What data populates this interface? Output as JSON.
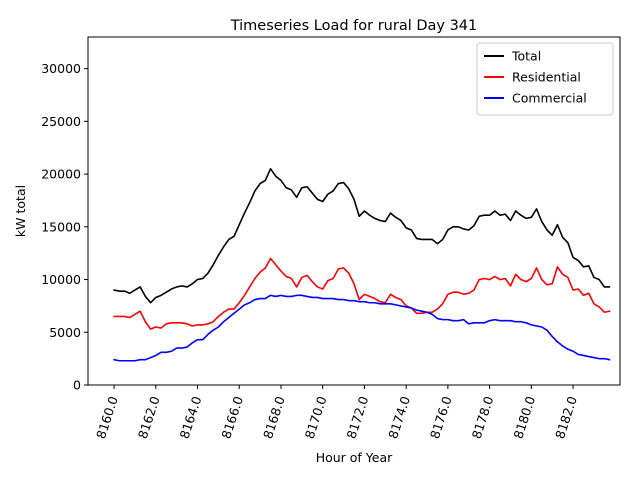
{
  "chart_data": {
    "type": "line",
    "title": "Timeseries Load for rural   Day 341",
    "xlabel": "Hour of Year",
    "ylabel": "kW total",
    "xlim": [
      8158.75,
      8184.25
    ],
    "ylim": [
      0,
      33000
    ],
    "xticks": [
      8160,
      8162,
      8164,
      8166,
      8168,
      8170,
      8172,
      8174,
      8176,
      8178,
      8180,
      8182
    ],
    "xtick_labels": [
      "8160.0",
      "8162.0",
      "8164.0",
      "8166.0",
      "8168.0",
      "8170.0",
      "8172.0",
      "8174.0",
      "8176.0",
      "8178.0",
      "8180.0",
      "8182.0"
    ],
    "yticks": [
      0,
      5000,
      10000,
      15000,
      20000,
      25000,
      30000
    ],
    "ytick_labels": [
      "0",
      "5000",
      "10000",
      "15000",
      "20000",
      "25000",
      "30000"
    ],
    "legend_position": "top-right",
    "x": [
      8160,
      8160.25,
      8160.5,
      8160.75,
      8161,
      8161.25,
      8161.5,
      8161.75,
      8162,
      8162.25,
      8162.5,
      8162.75,
      8163,
      8163.25,
      8163.5,
      8163.75,
      8164,
      8164.25,
      8164.5,
      8164.75,
      8165,
      8165.25,
      8165.5,
      8165.75,
      8166,
      8166.25,
      8166.5,
      8166.75,
      8167,
      8167.25,
      8167.5,
      8167.75,
      8168,
      8168.25,
      8168.5,
      8168.75,
      8169,
      8169.25,
      8169.5,
      8169.75,
      8170,
      8170.25,
      8170.5,
      8170.75,
      8171,
      8171.25,
      8171.5,
      8171.75,
      8172,
      8172.25,
      8172.5,
      8172.75,
      8173,
      8173.25,
      8173.5,
      8173.75,
      8174,
      8174.25,
      8174.5,
      8174.75,
      8175,
      8175.25,
      8175.5,
      8175.75,
      8176,
      8176.25,
      8176.5,
      8176.75,
      8177,
      8177.25,
      8177.5,
      8177.75,
      8178,
      8178.25,
      8178.5,
      8178.75,
      8179,
      8179.25,
      8179.5,
      8179.75,
      8180,
      8180.25,
      8180.5,
      8180.75,
      8181,
      8181.25,
      8181.5,
      8181.75,
      8182,
      8182.25,
      8182.5,
      8182.75,
      8183,
      8183.25,
      8183.5,
      8183.75
    ],
    "series": [
      {
        "name": "Total",
        "color": "#000000",
        "values": [
          9000,
          8900,
          8900,
          8700,
          9000,
          9300,
          8400,
          7800,
          8300,
          8500,
          8800,
          9100,
          9300,
          9400,
          9300,
          9600,
          10000,
          10100,
          10600,
          11400,
          12300,
          13100,
          13800,
          14100,
          15200,
          16300,
          17300,
          18400,
          19100,
          19400,
          20500,
          19800,
          19400,
          18700,
          18500,
          17800,
          18700,
          18800,
          18200,
          17600,
          17400,
          18100,
          18400,
          19100,
          19200,
          18600,
          17600,
          16000,
          16500,
          16100,
          15800,
          15600,
          15500,
          16300,
          15900,
          15600,
          14900,
          14700,
          13900,
          13800,
          13800,
          13800,
          13400,
          13800,
          14700,
          15000,
          15000,
          14800,
          14700,
          15100,
          16000,
          16100,
          16100,
          16500,
          16100,
          16200,
          15600,
          16500,
          16100,
          15800,
          15900,
          16700,
          15500,
          14700,
          14200,
          15200,
          14000,
          13500,
          12100,
          11800,
          11200,
          11300,
          10200,
          10000,
          9300,
          9300
        ]
      },
      {
        "name": "Residential",
        "color": "#ff0000",
        "values": [
          6500,
          6500,
          6500,
          6400,
          6700,
          7000,
          6000,
          5300,
          5500,
          5400,
          5800,
          5900,
          5900,
          5900,
          5800,
          5600,
          5700,
          5700,
          5800,
          6000,
          6500,
          6900,
          7200,
          7200,
          7800,
          8500,
          9300,
          10100,
          10700,
          11100,
          12000,
          11400,
          10800,
          10300,
          10100,
          9300,
          10200,
          10400,
          9800,
          9300,
          9100,
          9900,
          10100,
          11000,
          11100,
          10600,
          9600,
          8100,
          8600,
          8400,
          8200,
          7900,
          7800,
          8600,
          8300,
          8100,
          7500,
          7300,
          6800,
          6800,
          6900,
          6900,
          7200,
          7700,
          8600,
          8800,
          8800,
          8600,
          8700,
          9000,
          10000,
          10100,
          10000,
          10300,
          10000,
          10100,
          9400,
          10500,
          10000,
          9800,
          10100,
          11100,
          10000,
          9500,
          9600,
          11200,
          10500,
          10200,
          9000,
          9100,
          8500,
          8700,
          7700,
          7400,
          6900,
          7000
        ]
      },
      {
        "name": "Commercial",
        "color": "#0000ff",
        "values": [
          2400,
          2300,
          2300,
          2300,
          2300,
          2400,
          2400,
          2600,
          2800,
          3100,
          3100,
          3200,
          3500,
          3500,
          3600,
          4000,
          4300,
          4300,
          4800,
          5200,
          5500,
          6000,
          6400,
          6800,
          7200,
          7600,
          7800,
          8100,
          8200,
          8200,
          8500,
          8400,
          8500,
          8400,
          8400,
          8500,
          8500,
          8400,
          8300,
          8300,
          8200,
          8200,
          8200,
          8100,
          8100,
          8000,
          8000,
          7900,
          7900,
          7800,
          7800,
          7700,
          7700,
          7700,
          7600,
          7500,
          7400,
          7300,
          7100,
          7000,
          6900,
          6700,
          6300,
          6200,
          6200,
          6100,
          6100,
          6200,
          5800,
          5900,
          5900,
          5900,
          6100,
          6200,
          6100,
          6100,
          6100,
          6000,
          6000,
          5900,
          5700,
          5600,
          5500,
          5200,
          4600,
          4100,
          3700,
          3400,
          3200,
          2900,
          2800,
          2700,
          2600,
          2500,
          2500,
          2400
        ]
      }
    ]
  }
}
